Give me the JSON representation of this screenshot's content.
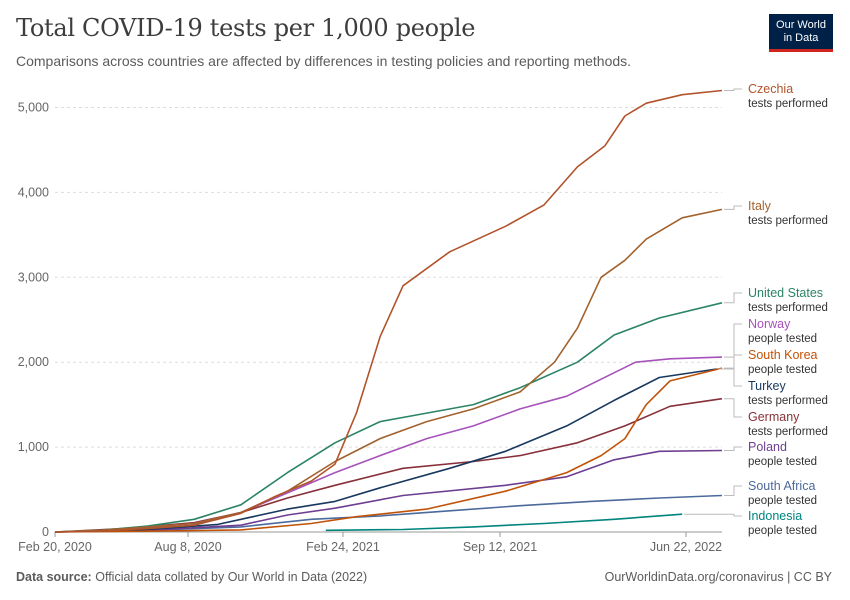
{
  "header": {
    "title": "Total COVID-19 tests per 1,000 people",
    "subtitle": "Comparisons across countries are affected by differences in testing policies and reporting methods.",
    "logo_line1": "Our World",
    "logo_line2": "in Data"
  },
  "footer": {
    "source_label": "Data source:",
    "source_text": "Official data collated by Our World in Data (2022)",
    "link": "OurWorldinData.org/coronavirus | CC BY"
  },
  "chart_data": {
    "type": "line",
    "x_ticks": [
      "Feb 20, 2020",
      "Aug 8, 2020",
      "Feb 24, 2021",
      "Sep 12, 2021",
      "Jun 22, 2022"
    ],
    "y_ticks": [
      "0",
      "1,000",
      "2,000",
      "3,000",
      "4,000",
      "5,000"
    ],
    "ylim": [
      0,
      5300
    ],
    "x_range": [
      "2020-02-01",
      "2022-06-22"
    ],
    "grid": "horizontal-dashed",
    "series": [
      {
        "name": "Czechia",
        "sublabel": "tests performed",
        "color": "#b1532b",
        "label_value": 5200,
        "points": [
          [
            "2020-02-01",
            0
          ],
          [
            "2020-04-01",
            10
          ],
          [
            "2020-06-01",
            40
          ],
          [
            "2020-08-01",
            80
          ],
          [
            "2020-10-01",
            220
          ],
          [
            "2020-11-15",
            420
          ],
          [
            "2021-01-01",
            600
          ],
          [
            "2021-02-01",
            800
          ],
          [
            "2021-03-01",
            1400
          ],
          [
            "2021-04-01",
            2300
          ],
          [
            "2021-05-01",
            2900
          ],
          [
            "2021-07-01",
            3300
          ],
          [
            "2021-09-12",
            3600
          ],
          [
            "2021-11-01",
            3850
          ],
          [
            "2021-12-15",
            4300
          ],
          [
            "2022-01-20",
            4550
          ],
          [
            "2022-02-15",
            4900
          ],
          [
            "2022-03-15",
            5050
          ],
          [
            "2022-05-01",
            5150
          ],
          [
            "2022-06-22",
            5200
          ]
        ]
      },
      {
        "name": "Italy",
        "sublabel": "tests performed",
        "color": "#a2622d",
        "label_value": 3800,
        "points": [
          [
            "2020-02-01",
            0
          ],
          [
            "2020-04-01",
            20
          ],
          [
            "2020-06-01",
            60
          ],
          [
            "2020-08-01",
            100
          ],
          [
            "2020-10-01",
            230
          ],
          [
            "2020-12-01",
            480
          ],
          [
            "2021-02-01",
            830
          ],
          [
            "2021-04-01",
            1100
          ],
          [
            "2021-06-01",
            1300
          ],
          [
            "2021-08-01",
            1450
          ],
          [
            "2021-10-01",
            1650
          ],
          [
            "2021-11-15",
            2000
          ],
          [
            "2021-12-15",
            2400
          ],
          [
            "2022-01-15",
            3000
          ],
          [
            "2022-02-15",
            3200
          ],
          [
            "2022-03-15",
            3450
          ],
          [
            "2022-05-01",
            3700
          ],
          [
            "2022-06-22",
            3800
          ]
        ]
      },
      {
        "name": "United States",
        "sublabel": "tests performed",
        "color": "#2b8465",
        "label_value": 2700,
        "points": [
          [
            "2020-02-01",
            0
          ],
          [
            "2020-04-01",
            20
          ],
          [
            "2020-06-01",
            70
          ],
          [
            "2020-08-01",
            150
          ],
          [
            "2020-10-01",
            320
          ],
          [
            "2020-12-01",
            700
          ],
          [
            "2021-02-01",
            1050
          ],
          [
            "2021-04-01",
            1300
          ],
          [
            "2021-06-01",
            1400
          ],
          [
            "2021-08-01",
            1500
          ],
          [
            "2021-10-01",
            1700
          ],
          [
            "2021-12-15",
            2000
          ],
          [
            "2022-02-01",
            2320
          ],
          [
            "2022-04-01",
            2520
          ],
          [
            "2022-06-22",
            2700
          ]
        ]
      },
      {
        "name": "Norway",
        "sublabel": "people tested",
        "color": "#a652ba",
        "label_value": 2060,
        "points": [
          [
            "2020-02-01",
            0
          ],
          [
            "2020-05-01",
            30
          ],
          [
            "2020-08-01",
            100
          ],
          [
            "2020-10-01",
            230
          ],
          [
            "2020-12-01",
            460
          ],
          [
            "2021-02-01",
            700
          ],
          [
            "2021-04-01",
            900
          ],
          [
            "2021-06-01",
            1100
          ],
          [
            "2021-08-01",
            1250
          ],
          [
            "2021-10-01",
            1450
          ],
          [
            "2021-12-01",
            1600
          ],
          [
            "2022-01-15",
            1800
          ],
          [
            "2022-03-01",
            2000
          ],
          [
            "2022-04-15",
            2040
          ],
          [
            "2022-06-22",
            2060
          ]
        ]
      },
      {
        "name": "South Korea",
        "sublabel": "people tested",
        "color": "#c15308",
        "label_value": 1930,
        "points": [
          [
            "2020-02-01",
            0
          ],
          [
            "2020-06-01",
            10
          ],
          [
            "2020-10-01",
            25
          ],
          [
            "2021-01-01",
            100
          ],
          [
            "2021-03-01",
            180
          ],
          [
            "2021-06-01",
            270
          ],
          [
            "2021-09-12",
            480
          ],
          [
            "2021-12-01",
            700
          ],
          [
            "2022-01-15",
            900
          ],
          [
            "2022-02-15",
            1100
          ],
          [
            "2022-03-15",
            1500
          ],
          [
            "2022-04-15",
            1780
          ],
          [
            "2022-06-22",
            1930
          ]
        ]
      },
      {
        "name": "Turkey",
        "sublabel": "tests performed",
        "color": "#18385f",
        "label_value": 1920,
        "points": [
          [
            "2020-02-01",
            0
          ],
          [
            "2020-06-01",
            30
          ],
          [
            "2020-09-01",
            90
          ],
          [
            "2020-12-01",
            270
          ],
          [
            "2021-02-01",
            360
          ],
          [
            "2021-04-01",
            520
          ],
          [
            "2021-07-01",
            750
          ],
          [
            "2021-09-12",
            950
          ],
          [
            "2021-12-01",
            1250
          ],
          [
            "2022-02-01",
            1550
          ],
          [
            "2022-04-01",
            1820
          ],
          [
            "2022-06-15",
            1920
          ]
        ]
      },
      {
        "name": "Germany",
        "sublabel": "tests performed",
        "color": "#883039",
        "label_value": 1570,
        "points": [
          [
            "2020-02-01",
            0
          ],
          [
            "2020-05-01",
            40
          ],
          [
            "2020-08-01",
            110
          ],
          [
            "2020-10-01",
            230
          ],
          [
            "2020-12-01",
            400
          ],
          [
            "2021-02-01",
            550
          ],
          [
            "2021-05-01",
            750
          ],
          [
            "2021-08-01",
            830
          ],
          [
            "2021-10-01",
            900
          ],
          [
            "2021-12-15",
            1050
          ],
          [
            "2022-02-15",
            1250
          ],
          [
            "2022-04-15",
            1480
          ],
          [
            "2022-06-22",
            1570
          ]
        ]
      },
      {
        "name": "Poland",
        "sublabel": "people tested",
        "color": "#6d3e91",
        "label_value": 960,
        "points": [
          [
            "2020-02-01",
            0
          ],
          [
            "2020-06-01",
            20
          ],
          [
            "2020-10-01",
            80
          ],
          [
            "2020-12-01",
            200
          ],
          [
            "2021-02-01",
            280
          ],
          [
            "2021-05-01",
            430
          ],
          [
            "2021-09-12",
            550
          ],
          [
            "2021-12-01",
            650
          ],
          [
            "2022-02-01",
            850
          ],
          [
            "2022-04-01",
            950
          ],
          [
            "2022-06-22",
            960
          ]
        ]
      },
      {
        "name": "South Africa",
        "sublabel": "people tested",
        "color": "#4c6a9c",
        "label_value": 430,
        "points": [
          [
            "2020-02-01",
            0
          ],
          [
            "2020-06-01",
            20
          ],
          [
            "2020-10-01",
            60
          ],
          [
            "2021-01-01",
            150
          ],
          [
            "2021-04-01",
            190
          ],
          [
            "2021-07-01",
            250
          ],
          [
            "2021-10-01",
            310
          ],
          [
            "2022-01-01",
            360
          ],
          [
            "2022-04-01",
            400
          ],
          [
            "2022-06-22",
            430
          ]
        ]
      },
      {
        "name": "Indonesia",
        "sublabel": "people tested",
        "color": "#00847e",
        "label_value": 210,
        "points": [
          [
            "2021-01-20",
            20
          ],
          [
            "2021-05-01",
            30
          ],
          [
            "2021-08-01",
            60
          ],
          [
            "2021-11-01",
            100
          ],
          [
            "2022-02-01",
            150
          ],
          [
            "2022-05-01",
            210
          ]
        ]
      }
    ]
  }
}
